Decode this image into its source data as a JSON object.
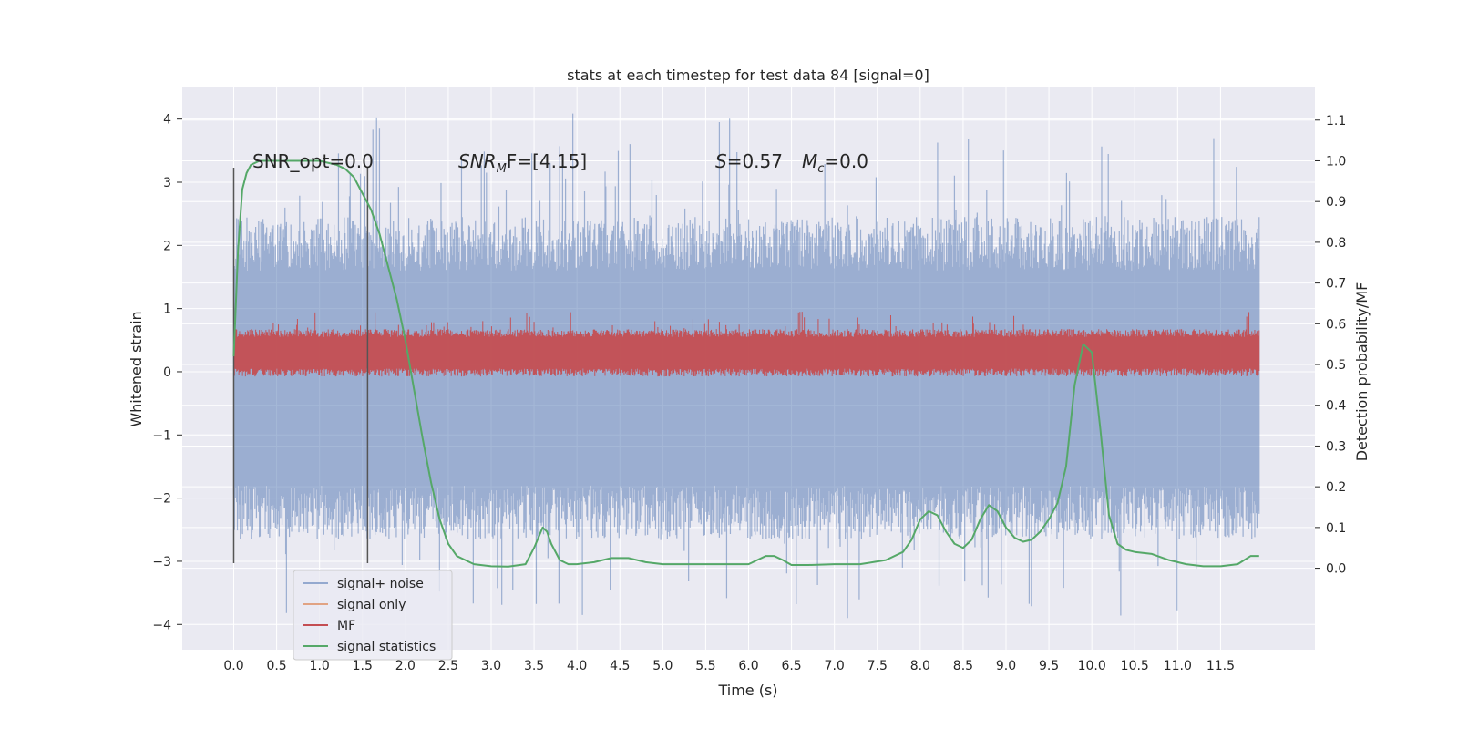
{
  "chart_data": {
    "type": "line",
    "title": "stats at each timestep for test data 84 [signal=0]",
    "xlabel": "Time (s)",
    "ylabel": "Whitened strain",
    "ylabel_right": "Detection probability/MF",
    "xlim": [
      -0.6,
      12.6
    ],
    "ylim": [
      -4.4,
      4.5
    ],
    "ylim_right": [
      -0.2,
      1.18
    ],
    "x_ticks": [
      "0.0",
      "0.5",
      "1.0",
      "1.5",
      "2.0",
      "2.5",
      "3.0",
      "3.5",
      "4.0",
      "4.5",
      "5.0",
      "5.5",
      "6.0",
      "6.5",
      "7.0",
      "7.5",
      "8.0",
      "8.5",
      "9.0",
      "9.5",
      "10.0",
      "10.5",
      "11.0",
      "11.5"
    ],
    "y_ticks": [
      "4",
      "3",
      "2",
      "1",
      "0",
      "−1",
      "−2",
      "−3",
      "−4"
    ],
    "y_ticks_right": [
      "1.1",
      "1.0",
      "0.9",
      "0.8",
      "0.7",
      "0.6",
      "0.5",
      "0.4",
      "0.3",
      "0.2",
      "0.1",
      "0.0"
    ],
    "grid": true,
    "legend_position": "lower-left",
    "colors": {
      "background": "#eaeaf2",
      "grid": "#ffffff",
      "signal_noise": "#4c72b0",
      "signal_only": "#dd8452",
      "mf": "#c44e52",
      "signal_statistics": "#55a868",
      "vline": "#555555"
    },
    "annotations": {
      "snr_opt": "SNR_opt=0.0",
      "snr_mf_main": "SNR",
      "snr_mf_sub": "M",
      "snr_mf_rest": "F=[4.15]",
      "s_main": "S",
      "s_rest": "=0.57",
      "mc_main": "M",
      "mc_sub": "c",
      "mc_rest": "=0.0"
    },
    "vlines_x": [
      0.0,
      1.56
    ],
    "series": [
      {
        "name": "signal+ noise",
        "kind": "noise",
        "x_range": [
          0.0,
          11.95
        ],
        "band": [
          -1.8,
          1.6
        ],
        "extremes": [
          -3.9,
          4.1
        ]
      },
      {
        "name": "signal only",
        "kind": "flat",
        "values": []
      },
      {
        "name": "MF",
        "kind": "noise",
        "x_range": [
          0.0,
          11.95
        ],
        "band": [
          0.05,
          0.55
        ],
        "extremes": [
          0.0,
          0.95
        ]
      },
      {
        "name": "signal statistics",
        "kind": "line",
        "axis": "right",
        "x": [
          0.0,
          0.05,
          0.1,
          0.15,
          0.2,
          0.3,
          0.5,
          0.7,
          1.0,
          1.2,
          1.3,
          1.4,
          1.5,
          1.6,
          1.7,
          1.8,
          1.9,
          2.0,
          2.1,
          2.2,
          2.3,
          2.4,
          2.5,
          2.6,
          2.8,
          3.0,
          3.2,
          3.4,
          3.5,
          3.6,
          3.65,
          3.7,
          3.8,
          3.9,
          4.0,
          4.2,
          4.4,
          4.6,
          4.8,
          5.0,
          5.2,
          5.4,
          5.6,
          5.8,
          6.0,
          6.1,
          6.2,
          6.3,
          6.4,
          6.5,
          6.7,
          7.0,
          7.3,
          7.6,
          7.8,
          7.9,
          8.0,
          8.1,
          8.2,
          8.3,
          8.4,
          8.5,
          8.6,
          8.7,
          8.8,
          8.9,
          9.0,
          9.1,
          9.2,
          9.3,
          9.4,
          9.5,
          9.6,
          9.7,
          9.8,
          9.9,
          10.0,
          10.1,
          10.2,
          10.3,
          10.4,
          10.5,
          10.7,
          10.9,
          11.1,
          11.3,
          11.5,
          11.7,
          11.85,
          11.95
        ],
        "y": [
          0.52,
          0.78,
          0.93,
          0.97,
          0.99,
          1.0,
          1.0,
          1.0,
          1.0,
          0.99,
          0.98,
          0.96,
          0.92,
          0.88,
          0.82,
          0.74,
          0.66,
          0.56,
          0.44,
          0.32,
          0.21,
          0.12,
          0.06,
          0.03,
          0.01,
          0.005,
          0.004,
          0.01,
          0.05,
          0.1,
          0.09,
          0.06,
          0.02,
          0.01,
          0.01,
          0.015,
          0.025,
          0.025,
          0.015,
          0.01,
          0.01,
          0.01,
          0.01,
          0.01,
          0.01,
          0.02,
          0.03,
          0.03,
          0.02,
          0.008,
          0.008,
          0.01,
          0.01,
          0.02,
          0.04,
          0.07,
          0.12,
          0.14,
          0.13,
          0.09,
          0.06,
          0.05,
          0.07,
          0.12,
          0.155,
          0.14,
          0.1,
          0.075,
          0.065,
          0.07,
          0.09,
          0.12,
          0.16,
          0.25,
          0.45,
          0.55,
          0.53,
          0.34,
          0.13,
          0.06,
          0.045,
          0.04,
          0.035,
          0.02,
          0.01,
          0.005,
          0.005,
          0.01,
          0.03,
          0.03
        ]
      }
    ]
  }
}
